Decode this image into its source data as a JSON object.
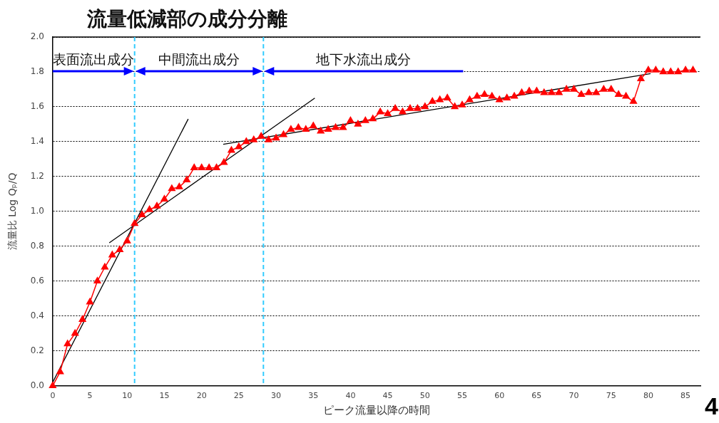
{
  "chart_data": {
    "type": "line",
    "title": "流量低減部の成分分離",
    "xlabel": "ピーク流量以降の時間",
    "ylabel": "流量比 Log Qₚ/Q",
    "x": [
      0,
      1,
      2,
      3,
      4,
      5,
      6,
      7,
      8,
      9,
      10,
      11,
      12,
      13,
      14,
      15,
      16,
      17,
      18,
      19,
      20,
      21,
      22,
      23,
      24,
      25,
      26,
      27,
      28,
      29,
      30,
      31,
      32,
      33,
      34,
      35,
      36,
      37,
      38,
      39,
      40,
      41,
      42,
      43,
      44,
      45,
      46,
      47,
      48,
      49,
      50,
      51,
      52,
      53,
      54,
      55,
      56,
      57,
      58,
      59,
      60,
      61,
      62,
      63,
      64,
      65,
      66,
      67,
      68,
      69,
      70,
      71,
      72,
      73,
      74,
      75,
      76,
      77,
      78,
      79,
      80,
      81,
      82,
      83,
      84,
      85,
      86
    ],
    "series": [
      {
        "color": "#ff0000",
        "marker": "triangle",
        "values": [
          0.0,
          0.08,
          0.24,
          0.3,
          0.38,
          0.48,
          0.6,
          0.68,
          0.75,
          0.78,
          0.83,
          0.93,
          0.98,
          1.01,
          1.03,
          1.07,
          1.13,
          1.14,
          1.18,
          1.25,
          1.25,
          1.25,
          1.25,
          1.28,
          1.35,
          1.37,
          1.4,
          1.41,
          1.43,
          1.41,
          1.42,
          1.44,
          1.47,
          1.48,
          1.47,
          1.49,
          1.46,
          1.47,
          1.48,
          1.48,
          1.52,
          1.5,
          1.52,
          1.53,
          1.57,
          1.56,
          1.59,
          1.57,
          1.59,
          1.59,
          1.6,
          1.63,
          1.64,
          1.65,
          1.6,
          1.61,
          1.64,
          1.66,
          1.67,
          1.66,
          1.64,
          1.65,
          1.66,
          1.68,
          1.69,
          1.69,
          1.68,
          1.68,
          1.68,
          1.7,
          1.7,
          1.67,
          1.68,
          1.68,
          1.7,
          1.7,
          1.67,
          1.66,
          1.63,
          1.76,
          1.81,
          1.81,
          1.8,
          1.8,
          1.8,
          1.81,
          1.81
        ]
      },
      {
        "type": "line",
        "color": "#000000",
        "marker": "none",
        "x": [
          0,
          18.2
        ],
        "values": [
          0.02,
          1.53
        ]
      },
      {
        "type": "line",
        "color": "#000000",
        "marker": "none",
        "x": [
          7.6,
          35.2
        ],
        "values": [
          0.82,
          1.65
        ]
      },
      {
        "type": "line",
        "color": "#000000",
        "marker": "none",
        "x": [
          22.9,
          80.3
        ],
        "values": [
          1.385,
          1.79
        ]
      }
    ],
    "xlim": [
      0,
      87
    ],
    "xticks": [
      0,
      5,
      10,
      15,
      20,
      25,
      30,
      35,
      40,
      45,
      50,
      55,
      60,
      65,
      70,
      75,
      80,
      85
    ],
    "ylim": [
      0,
      2.0
    ],
    "yticks": [
      {
        "value": 0,
        "label": "0.0"
      },
      {
        "value": 0.2,
        "label": "0.2"
      },
      {
        "value": 0.4,
        "label": "0.4"
      },
      {
        "value": 0.6,
        "label": "0.6"
      },
      {
        "value": 0.8,
        "label": "0.8"
      },
      {
        "value": 1.0,
        "label": "1.0"
      },
      {
        "value": 1.2,
        "label": "1.2"
      },
      {
        "value": 1.4,
        "label": "1.4"
      },
      {
        "value": 1.6,
        "label": "1.6"
      },
      {
        "value": 1.8,
        "label": "1.8"
      },
      {
        "value": 2.0,
        "label": "2.0"
      }
    ],
    "grid": "y",
    "legend": false,
    "ref_lines": [
      {
        "axis": "x",
        "value": 11,
        "color": "#33ccff",
        "line_style": "dashed"
      },
      {
        "axis": "x",
        "value": 28.3,
        "color": "#33ccff",
        "line_style": "dashed"
      }
    ],
    "annotations": [
      "表面流出成分",
      "中間流出成分",
      "地下水流出成分",
      "4"
    ]
  }
}
